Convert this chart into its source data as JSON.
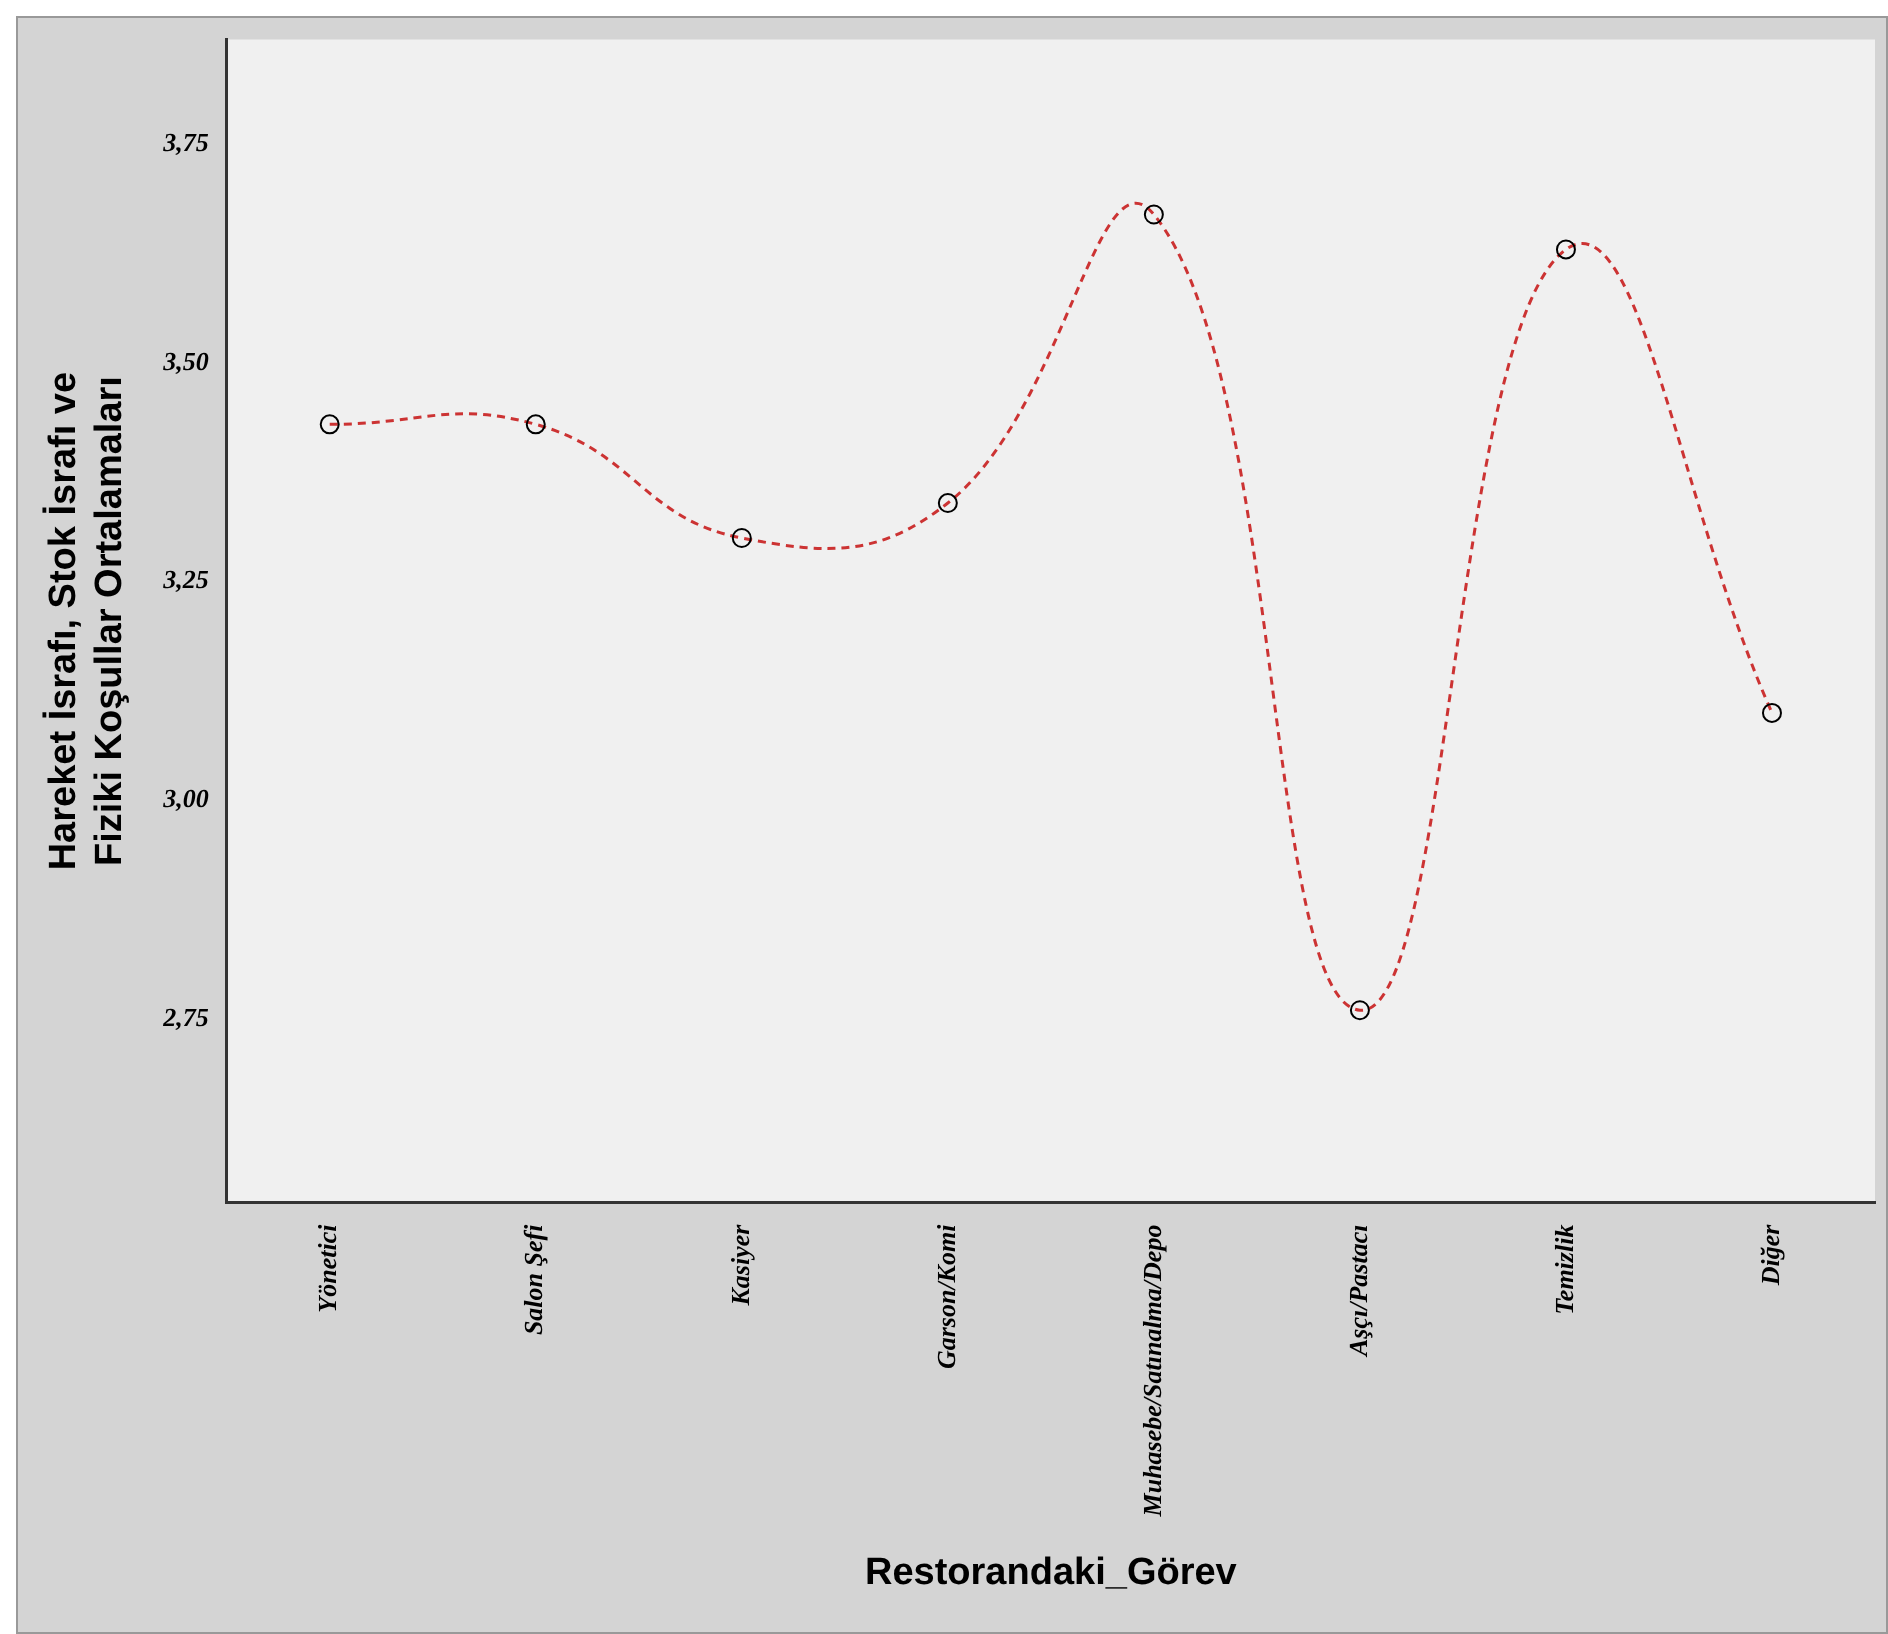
{
  "chart_data": {
    "type": "line",
    "xlabel": "Restorandaki_Görev",
    "ylabel": "Hareket İsrafı, Stok İsrafı ve Fiziki Koşullar Ortalamaları",
    "categories": [
      "Yönetici",
      "Salon Şefi",
      "Kasiyer",
      "Garson/Komi",
      "Muhasebe/Satınalma/Depo",
      "Aşçı/Pastacı",
      "Temizlik",
      "Diğer"
    ],
    "series": [
      {
        "color": "#cc3333",
        "values": [
          3.43,
          3.43,
          3.3,
          3.34,
          3.67,
          2.76,
          3.63,
          3.1
        ]
      }
    ],
    "ylim": [
      2.54,
      3.87
    ],
    "yticks": [
      {
        "value": 2.75,
        "label": "2,75"
      },
      {
        "value": 3,
        "label": "3,00"
      },
      {
        "value": 3.25,
        "label": "3,25"
      },
      {
        "value": 3.5,
        "label": "3,50"
      },
      {
        "value": 3.75,
        "label": "3,75"
      }
    ],
    "grid": false,
    "legend": false,
    "marker": "circle",
    "line_style": "dashed"
  }
}
